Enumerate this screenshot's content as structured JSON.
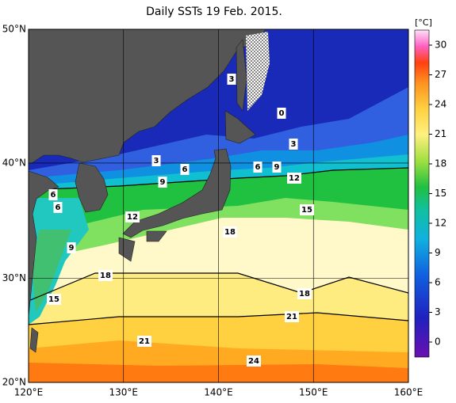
{
  "title": "Daily SSTs 19 Feb. 2015.",
  "lon_ticks": [
    {
      "value": 120,
      "label": "120°E"
    },
    {
      "value": 130,
      "label": "130°E"
    },
    {
      "value": 140,
      "label": "140°E"
    },
    {
      "value": 150,
      "label": "150°E"
    },
    {
      "value": 160,
      "label": "160°E"
    }
  ],
  "lat_ticks": [
    {
      "value": 20,
      "label": "20°N"
    },
    {
      "value": 30,
      "label": "30°N"
    },
    {
      "value": 40,
      "label": "40°N"
    },
    {
      "value": 50,
      "label": "50°N"
    }
  ],
  "colorbar": {
    "unit": "[°C]",
    "ticks": [
      0,
      3,
      6,
      9,
      12,
      15,
      18,
      21,
      24,
      27,
      30
    ]
  },
  "contour_labels": [
    3,
    0,
    3,
    3,
    6,
    6,
    9,
    12,
    9,
    6,
    6,
    12,
    15,
    18,
    9,
    18,
    18,
    15,
    21,
    21,
    24
  ]
}
